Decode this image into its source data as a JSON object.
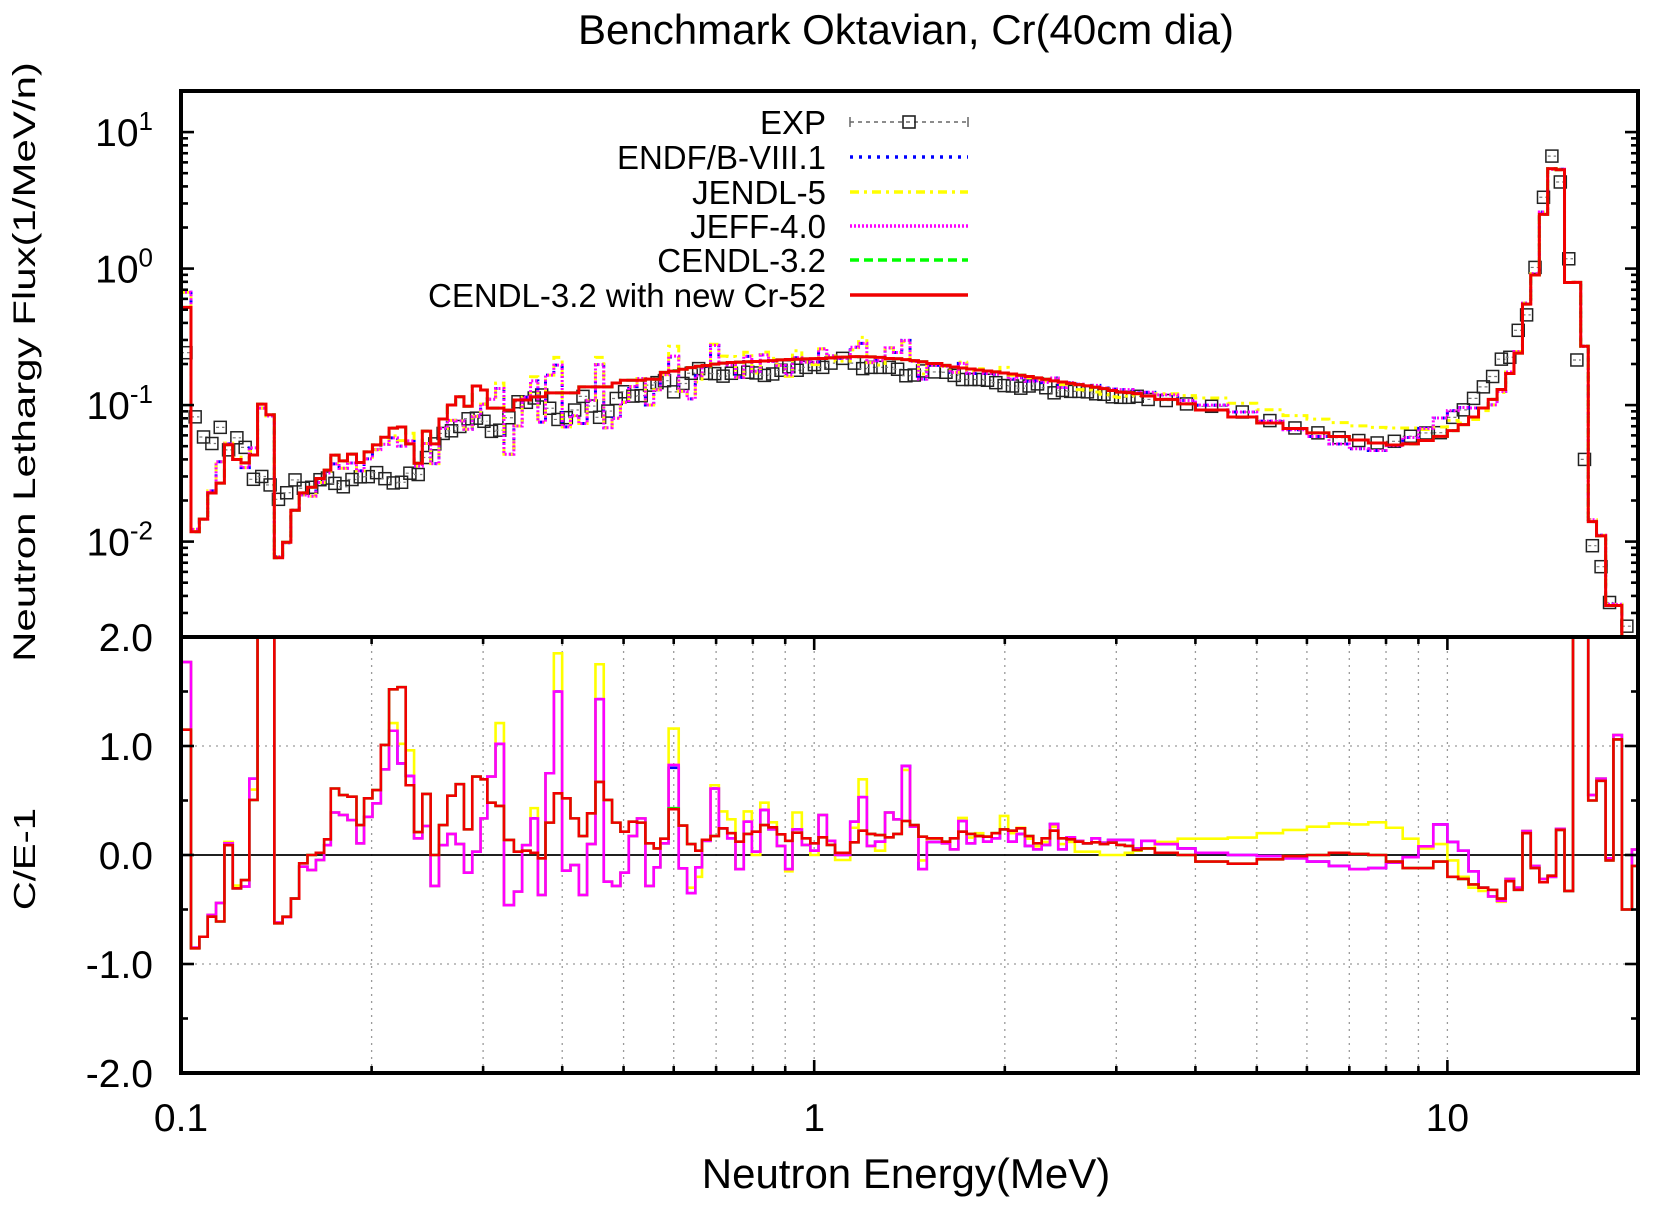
{
  "chart_data": {
    "type": "line",
    "subtype": "histogram-step",
    "title": "Benchmark Oktavian, Cr(40cm dia)",
    "xlabel": "Neutron Energy(MeV)",
    "xscale": "log",
    "xlim": [
      0.1,
      20
    ],
    "xticks": [
      {
        "value": 0.1,
        "label": "0.1"
      },
      {
        "value": 1,
        "label": "1"
      },
      {
        "value": 10,
        "label": "10"
      }
    ],
    "x_minor_ticks": [
      0.2,
      0.3,
      0.4,
      0.5,
      0.6,
      0.7,
      0.8,
      0.9,
      2,
      3,
      4,
      5,
      6,
      7,
      8,
      9
    ],
    "panels": [
      {
        "name": "lethargy-flux",
        "ylabel": "Neutron Lethargy Flux(1/MeV/n)",
        "yscale": "log",
        "ylim": [
          0.002,
          20
        ],
        "yticks": [
          {
            "value": 10,
            "base": "10",
            "exp": "1"
          },
          {
            "value": 1,
            "base": "10",
            "exp": "0"
          },
          {
            "value": 0.1,
            "base": "10",
            "exp": "-1"
          },
          {
            "value": 0.01,
            "base": "10",
            "exp": "-2"
          }
        ],
        "grid": false,
        "legend_position": "top-center"
      },
      {
        "name": "c-over-e",
        "ylabel": "C/E-1",
        "yscale": "linear",
        "ylim": [
          -2.0,
          2.0
        ],
        "yticks": [
          {
            "value": 2.0,
            "label": "2.0"
          },
          {
            "value": 1.0,
            "label": "1.0"
          },
          {
            "value": 0.0,
            "label": "0.0"
          },
          {
            "value": -1.0,
            "label": "-1.0"
          },
          {
            "value": -2.0,
            "label": "-2.0"
          }
        ],
        "y_minor_ticks": [
          1.5,
          0.5,
          -0.5,
          -1.5
        ],
        "grid": true,
        "reference_line": 0.0
      }
    ],
    "energy_bin_edges": [
      0.1,
      0.1037,
      0.1069,
      0.1102,
      0.1136,
      0.1171,
      0.1207,
      0.1244,
      0.1282,
      0.1321,
      0.1362,
      0.1404,
      0.1447,
      0.1491,
      0.1537,
      0.1584,
      0.1633,
      0.1683,
      0.1724,
      0.1777,
      0.1832,
      0.1893,
      0.1946,
      0.2006,
      0.2068,
      0.2131,
      0.2197,
      0.2264,
      0.2334,
      0.2405,
      0.2479,
      0.2555,
      0.2634,
      0.2715,
      0.2798,
      0.2884,
      0.2973,
      0.3046,
      0.3139,
      0.3236,
      0.3355,
      0.3458,
      0.3565,
      0.3661,
      0.3764,
      0.388,
      0.3999,
      0.4122,
      0.4249,
      0.4379,
      0.4514,
      0.4652,
      0.4795,
      0.4943,
      0.5095,
      0.5251,
      0.5412,
      0.5579,
      0.5715,
      0.589,
      0.611,
      0.63,
      0.649,
      0.665,
      0.686,
      0.707,
      0.729,
      0.751,
      0.774,
      0.797,
      0.822,
      0.847,
      0.873,
      0.9,
      0.924,
      0.956,
      0.986,
      1.016,
      1.047,
      1.079,
      1.14,
      1.175,
      1.211,
      1.248,
      1.294,
      1.334,
      1.375,
      1.417,
      1.461,
      1.506,
      1.591,
      1.639,
      1.689,
      1.741,
      1.795,
      1.849,
      1.907,
      1.965,
      2.025,
      2.088,
      2.152,
      2.218,
      2.287,
      2.357,
      2.429,
      2.504,
      2.58,
      2.659,
      2.742,
      2.826,
      2.912,
      3.002,
      3.094,
      3.188,
      3.287,
      3.451,
      3.75,
      4.0,
      4.5,
      5.0,
      5.5,
      6.0,
      6.5,
      7.0,
      7.5,
      8.0,
      8.5,
      9.0,
      9.5,
      10.0,
      10.4,
      10.8,
      11.2,
      11.6,
      11.98,
      12.36,
      12.74,
      13.14,
      13.54,
      13.97,
      14.4,
      14.85,
      15.31,
      15.79,
      16.24,
      16.69,
      17.2,
      17.78,
      18.29,
      18.86,
      19.56,
      20.0
    ],
    "experiment": {
      "name": "EXP",
      "color": "#222222",
      "marker": "open-square-with-error-bars",
      "flux": [
        0.242,
        0.082,
        0.0584,
        0.0523,
        0.0687,
        0.047,
        0.0576,
        0.049,
        0.0286,
        0.03,
        0.026,
        0.0204,
        0.0228,
        0.0283,
        0.0246,
        0.025,
        0.0284,
        0.0292,
        0.0267,
        0.0252,
        0.0285,
        0.0298,
        0.0299,
        0.032,
        0.0289,
        0.0269,
        0.0272,
        0.0317,
        0.031,
        0.0413,
        0.052,
        0.062,
        0.0648,
        0.0697,
        0.0794,
        0.0802,
        0.0761,
        0.0642,
        0.0655,
        0.0808,
        0.1058,
        0.1048,
        0.1127,
        0.1186,
        0.0948,
        0.0785,
        0.0809,
        0.092,
        0.1158,
        0.0984,
        0.0814,
        0.0904,
        0.1118,
        0.1252,
        0.1164,
        0.1172,
        0.14,
        0.146,
        0.151,
        0.125,
        0.144,
        0.171,
        0.185,
        0.171,
        0.17,
        0.163,
        0.171,
        0.184,
        0.174,
        0.172,
        0.165,
        0.169,
        0.18,
        0.191,
        0.18,
        0.189,
        0.198,
        0.189,
        0.203,
        0.22,
        0.203,
        0.185,
        0.189,
        0.189,
        0.189,
        0.183,
        0.164,
        0.166,
        0.178,
        0.175,
        0.174,
        0.165,
        0.154,
        0.154,
        0.154,
        0.152,
        0.146,
        0.139,
        0.138,
        0.133,
        0.138,
        0.143,
        0.134,
        0.123,
        0.128,
        0.126,
        0.126,
        0.125,
        0.121,
        0.12,
        0.115,
        0.114,
        0.114,
        0.116,
        0.11,
        0.108,
        0.102,
        0.098,
        0.089,
        0.077,
        0.068,
        0.0626,
        0.0577,
        0.055,
        0.0528,
        0.0543,
        0.0591,
        0.0625,
        0.0628,
        0.0813,
        0.0923,
        0.112,
        0.136,
        0.162,
        0.217,
        0.224,
        0.353,
        0.458,
        1.02,
        3.33,
        6.67,
        4.31,
        1.18,
        0.214,
        0.04,
        0.00933,
        0.00655,
        0.00358,
        0.00165,
        0.0024,
        0.00133
      ]
    },
    "series": [
      {
        "name": "ENDF/B-VIII.1",
        "color": "#0000ff",
        "style": "dotted",
        "c_over_e_minus_1": [
          1.77,
          -0.85,
          -0.75,
          -0.55,
          -0.44,
          0.107,
          -0.306,
          -0.29,
          0.7,
          2.17,
          2.2,
          -0.62,
          -0.57,
          -0.4,
          -0.107,
          -0.138,
          -0.046,
          0.09,
          0.39,
          0.367,
          0.32,
          0.107,
          0.35,
          0.474,
          0.786,
          1.14,
          0.84,
          0.725,
          0.153,
          0.266,
          -0.284,
          0.09,
          0.193,
          0.1,
          -0.162,
          0.03,
          0.336,
          0.72,
          1.02,
          -0.46,
          -0.336,
          0.09,
          0.336,
          -0.367,
          0.75,
          1.5,
          -0.144,
          -0.092,
          -0.367,
          0.1,
          1.43,
          -0.245,
          -0.284,
          -0.162,
          0.174,
          0.336,
          -0.284,
          -0.113,
          0.107,
          0.8,
          -0.122,
          -0.35,
          -0.113,
          0.13,
          0.61,
          0.245,
          0.153,
          -0.13,
          0.306,
          0.03,
          0.413,
          0.235,
          0.083,
          -0.13,
          0.235,
          0.092,
          0.04,
          0.367,
          0.13,
          0.0,
          0.306,
          0.53,
          0.083,
          0.122,
          0.39,
          0.327,
          0.817,
          0.26,
          -0.13,
          0.12,
          0.107,
          0.052,
          0.312,
          0.107,
          0.174,
          0.122,
          0.153,
          0.235,
          0.122,
          0.193,
          0.083,
          0.052,
          0.092,
          0.284,
          0.052,
          0.162,
          0.13,
          0.107,
          0.153,
          0.113,
          0.138,
          0.138,
          0.138,
          0.06,
          0.13,
          0.1,
          0.06,
          0.02,
          0.0,
          -0.01,
          -0.03,
          -0.06,
          -0.1,
          -0.13,
          -0.12,
          -0.07,
          -0.02,
          0.08,
          0.28,
          0.12,
          0.04,
          -0.15,
          -0.3,
          -0.38,
          -0.42,
          -0.22,
          -0.3,
          0.22,
          -0.1,
          -0.22,
          -0.2,
          0.24,
          -0.33,
          2.7,
          5.75,
          0.55,
          0.7,
          -0.03,
          1.1,
          -0.5,
          0.05
        ]
      },
      {
        "name": "JENDL-5",
        "color": "#ffff00",
        "style": "dash-dot",
        "c_over_e_minus_1": [
          1.77,
          -0.85,
          -0.75,
          -0.55,
          -0.44,
          0.12,
          -0.28,
          -0.29,
          0.6,
          2.17,
          2.2,
          -0.62,
          -0.57,
          -0.4,
          -0.107,
          -0.138,
          -0.046,
          0.09,
          0.39,
          0.367,
          0.32,
          0.107,
          0.35,
          0.474,
          0.786,
          1.21,
          1.02,
          0.96,
          0.153,
          0.266,
          -0.284,
          0.09,
          0.193,
          0.1,
          -0.162,
          0.03,
          0.336,
          0.72,
          1.21,
          -0.46,
          -0.336,
          0.09,
          0.43,
          -0.367,
          0.75,
          1.85,
          -0.144,
          -0.092,
          -0.367,
          0.1,
          1.75,
          -0.245,
          -0.284,
          -0.162,
          0.174,
          0.336,
          -0.284,
          -0.113,
          0.107,
          1.16,
          -0.122,
          -0.3,
          -0.2,
          0.13,
          0.64,
          0.4,
          0.327,
          -0.13,
          0.4,
          0.0,
          0.48,
          0.3,
          0.083,
          -0.15,
          0.39,
          0.092,
          0.0,
          0.367,
          0.13,
          -0.046,
          0.25,
          0.694,
          0.083,
          0.04,
          0.39,
          0.327,
          0.78,
          0.26,
          -0.05,
          0.15,
          0.107,
          0.052,
          0.34,
          0.16,
          0.2,
          0.17,
          0.2,
          0.358,
          0.2,
          0.25,
          0.15,
          0.08,
          0.12,
          0.26,
          0.1,
          0.12,
          0.03,
          0.03,
          0.03,
          0.0,
          0.0,
          0.0,
          0.02,
          0.04,
          0.06,
          0.12,
          0.15,
          0.15,
          0.16,
          0.2,
          0.23,
          0.26,
          0.29,
          0.28,
          0.3,
          0.25,
          0.15,
          0.06,
          0.1,
          -0.05,
          -0.2,
          -0.3,
          -0.33,
          -0.38,
          -0.43,
          -0.22,
          -0.3,
          0.22,
          -0.1,
          -0.22,
          -0.2,
          0.24,
          -0.33,
          2.7,
          5.75,
          0.55,
          0.7,
          -0.03,
          1.1,
          -0.5,
          0.05
        ]
      },
      {
        "name": "JEFF-4.0",
        "color": "#ff00ff",
        "style": "fine-dotted",
        "c_over_e_minus_1": [
          1.77,
          -0.85,
          -0.75,
          -0.55,
          -0.44,
          0.107,
          -0.306,
          -0.29,
          0.7,
          2.17,
          2.2,
          -0.62,
          -0.57,
          -0.4,
          -0.107,
          -0.138,
          -0.046,
          0.09,
          0.39,
          0.367,
          0.32,
          0.107,
          0.35,
          0.474,
          0.786,
          1.14,
          0.84,
          0.725,
          0.153,
          0.266,
          -0.284,
          0.09,
          0.193,
          0.1,
          -0.162,
          0.03,
          0.336,
          0.72,
          1.02,
          -0.46,
          -0.336,
          0.09,
          0.336,
          -0.367,
          0.75,
          1.5,
          -0.144,
          -0.092,
          -0.367,
          0.1,
          1.43,
          -0.245,
          -0.284,
          -0.162,
          0.174,
          0.336,
          -0.284,
          -0.113,
          0.107,
          0.826,
          -0.122,
          -0.35,
          -0.113,
          0.13,
          0.61,
          0.245,
          0.153,
          -0.13,
          0.306,
          0.03,
          0.413,
          0.235,
          0.083,
          -0.13,
          0.235,
          0.092,
          0.04,
          0.367,
          0.13,
          0.0,
          0.306,
          0.53,
          0.083,
          0.122,
          0.39,
          0.327,
          0.817,
          0.26,
          -0.13,
          0.12,
          0.107,
          0.052,
          0.312,
          0.107,
          0.174,
          0.122,
          0.153,
          0.235,
          0.122,
          0.193,
          0.083,
          0.052,
          0.092,
          0.284,
          0.052,
          0.162,
          0.13,
          0.107,
          0.153,
          0.113,
          0.138,
          0.138,
          0.138,
          0.06,
          0.13,
          0.1,
          0.06,
          0.02,
          0.0,
          -0.01,
          -0.03,
          -0.06,
          -0.1,
          -0.13,
          -0.12,
          -0.07,
          -0.02,
          0.08,
          0.28,
          0.12,
          0.04,
          -0.15,
          -0.3,
          -0.38,
          -0.42,
          -0.22,
          -0.3,
          0.22,
          -0.1,
          -0.22,
          -0.2,
          0.24,
          -0.33,
          2.7,
          5.75,
          0.55,
          0.7,
          -0.03,
          1.1,
          -0.5,
          0.05
        ]
      },
      {
        "name": "CENDL-3.2",
        "color": "#00ff00",
        "style": "dashed",
        "c_over_e_minus_1": [
          1.15,
          -0.856,
          -0.75,
          -0.566,
          -0.61,
          0.09,
          -0.306,
          -0.23,
          0.505,
          2.39,
          2.27,
          -0.627,
          -0.566,
          -0.4,
          -0.076,
          0.0,
          0.02,
          0.144,
          0.61,
          0.55,
          0.535,
          0.275,
          0.52,
          0.596,
          1.01,
          1.52,
          1.54,
          0.64,
          0.21,
          0.56,
          0.0,
          0.275,
          0.544,
          0.65,
          0.235,
          0.72,
          0.694,
          0.48,
          0.45,
          0.138,
          0.03,
          0.04,
          0.02,
          -0.03,
          0.297,
          0.566,
          0.52,
          0.336,
          0.174,
          0.382,
          0.67,
          0.505,
          0.297,
          0.214,
          0.306,
          0.297,
          0.107,
          0.06,
          0.15,
          0.43,
          0.27,
          0.1,
          0.04,
          0.14,
          0.174,
          0.245,
          0.2,
          0.122,
          0.193,
          0.214,
          0.275,
          0.254,
          0.19,
          0.13,
          0.205,
          0.153,
          0.107,
          0.162,
          0.092,
          0.02,
          0.116,
          0.223,
          0.193,
          0.183,
          0.162,
          0.193,
          0.312,
          0.275,
          0.168,
          0.153,
          0.122,
          0.153,
          0.214,
          0.193,
          0.174,
          0.168,
          0.2,
          0.235,
          0.223,
          0.245,
          0.174,
          0.107,
          0.153,
          0.223,
          0.153,
          0.144,
          0.122,
          0.107,
          0.116,
          0.1,
          0.113,
          0.092,
          0.083,
          0.046,
          0.06,
          0.02,
          0.0,
          -0.06,
          -0.08,
          -0.04,
          -0.01,
          0.0,
          0.02,
          0.01,
          0.0,
          -0.06,
          -0.12,
          -0.12,
          -0.06,
          -0.2,
          -0.22,
          -0.27,
          -0.3,
          -0.32,
          -0.4,
          -0.24,
          -0.32,
          0.2,
          -0.12,
          -0.25,
          -0.19,
          0.23,
          -0.33,
          2.7,
          5.75,
          0.5,
          0.68,
          -0.05,
          1.06,
          -0.5,
          -0.1
        ]
      },
      {
        "name": "CENDL-3.2 with new Cr-52",
        "color": "#f00000",
        "style": "solid",
        "c_over_e_minus_1": [
          1.15,
          -0.856,
          -0.75,
          -0.566,
          -0.61,
          0.09,
          -0.306,
          -0.23,
          0.505,
          2.39,
          2.27,
          -0.627,
          -0.566,
          -0.4,
          -0.076,
          0.0,
          0.02,
          0.144,
          0.61,
          0.55,
          0.535,
          0.275,
          0.52,
          0.596,
          1.01,
          1.52,
          1.54,
          0.64,
          0.21,
          0.56,
          0.0,
          0.275,
          0.544,
          0.65,
          0.235,
          0.72,
          0.694,
          0.48,
          0.45,
          0.138,
          0.03,
          0.04,
          0.02,
          -0.03,
          0.297,
          0.566,
          0.52,
          0.336,
          0.174,
          0.382,
          0.67,
          0.505,
          0.297,
          0.214,
          0.306,
          0.297,
          0.107,
          0.06,
          0.15,
          0.42,
          0.27,
          0.1,
          0.04,
          0.14,
          0.174,
          0.245,
          0.2,
          0.122,
          0.193,
          0.214,
          0.275,
          0.254,
          0.19,
          0.13,
          0.205,
          0.153,
          0.107,
          0.162,
          0.092,
          0.02,
          0.116,
          0.223,
          0.193,
          0.183,
          0.162,
          0.193,
          0.312,
          0.275,
          0.168,
          0.153,
          0.122,
          0.153,
          0.214,
          0.193,
          0.174,
          0.168,
          0.2,
          0.235,
          0.223,
          0.245,
          0.174,
          0.107,
          0.153,
          0.223,
          0.153,
          0.144,
          0.122,
          0.107,
          0.116,
          0.1,
          0.113,
          0.092,
          0.083,
          0.046,
          0.06,
          0.02,
          0.0,
          -0.06,
          -0.08,
          -0.04,
          -0.01,
          0.0,
          0.02,
          0.01,
          0.0,
          -0.06,
          -0.12,
          -0.12,
          -0.06,
          -0.2,
          -0.22,
          -0.27,
          -0.3,
          -0.32,
          -0.4,
          -0.24,
          -0.32,
          0.2,
          -0.12,
          -0.25,
          -0.19,
          0.23,
          -0.33,
          2.7,
          5.75,
          0.5,
          0.68,
          -0.05,
          1.06,
          -0.5,
          -0.1
        ]
      }
    ]
  }
}
